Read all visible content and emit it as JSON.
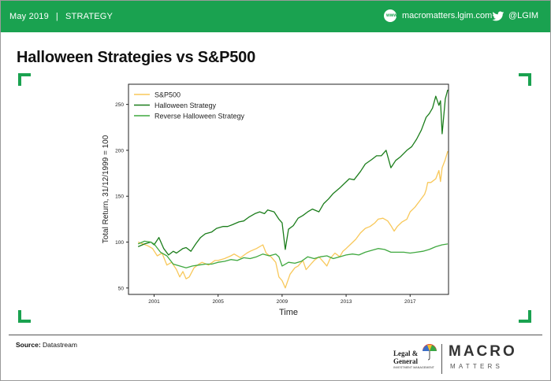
{
  "header": {
    "date": "May 2019",
    "separator": "|",
    "section": "STRATEGY",
    "website": "macromatters.lgim.com",
    "twitter": "@LGIM",
    "background_color": "#1aa250"
  },
  "slide_title": "Halloween Strategies vs S&P500",
  "source": {
    "label": "Source:",
    "text": "Datastream"
  },
  "footer": {
    "lg_name_line1": "Legal &",
    "lg_name_line2": "General",
    "lg_subtitle": "INVESTMENT MANAGEMENT",
    "brand_top": "MACRO",
    "brand_bottom": "MATTERS",
    "icons": [
      "umbrella-logo-icon",
      "macro-logo-icon",
      "web-icon",
      "twitter-icon"
    ]
  },
  "chart_data": {
    "type": "line",
    "title": "",
    "xlabel": "Time",
    "ylabel": "Total Return, 31/12/1999 = 100",
    "xlim": [
      1999.4,
      2019.4
    ],
    "ylim": [
      43,
      272
    ],
    "x_ticks": [
      2001,
      2005,
      2009,
      2013,
      2017
    ],
    "y_ticks": [
      50,
      100,
      150,
      200,
      250
    ],
    "grid": false,
    "legend_position": "top-left",
    "series": [
      {
        "name": "S&P500",
        "color": "#f8c85a",
        "x": [
          2000.0,
          2000.3,
          2000.6,
          2000.9,
          2001.2,
          2001.5,
          2001.8,
          2002.1,
          2002.4,
          2002.6,
          2002.8,
          2003.0,
          2003.2,
          2003.5,
          2003.8,
          2004.0,
          2004.4,
          2004.8,
          2005.0,
          2005.4,
          2005.8,
          2006.0,
          2006.4,
          2006.8,
          2007.0,
          2007.4,
          2007.8,
          2008.0,
          2008.3,
          2008.6,
          2008.8,
          2009.0,
          2009.2,
          2009.5,
          2009.8,
          2010.0,
          2010.3,
          2010.5,
          2010.8,
          2011.0,
          2011.3,
          2011.6,
          2011.8,
          2012.0,
          2012.3,
          2012.6,
          2012.8,
          2013.0,
          2013.3,
          2013.6,
          2013.9,
          2014.2,
          2014.5,
          2014.8,
          2015.0,
          2015.3,
          2015.6,
          2015.8,
          2016.0,
          2016.2,
          2016.5,
          2016.8,
          2017.0,
          2017.3,
          2017.6,
          2017.9,
          2018.0,
          2018.1,
          2018.3,
          2018.6,
          2018.8,
          2018.9,
          2019.0,
          2019.2,
          2019.35
        ],
        "values": [
          100,
          98,
          96,
          93,
          85,
          88,
          75,
          78,
          70,
          62,
          68,
          60,
          62,
          72,
          76,
          78,
          75,
          80,
          80,
          82,
          85,
          87,
          83,
          88,
          90,
          93,
          97,
          88,
          84,
          78,
          62,
          58,
          50,
          65,
          72,
          74,
          80,
          70,
          76,
          80,
          84,
          78,
          74,
          82,
          88,
          84,
          90,
          93,
          98,
          103,
          110,
          115,
          117,
          121,
          125,
          126,
          123,
          118,
          112,
          117,
          122,
          125,
          133,
          138,
          145,
          152,
          157,
          165,
          165,
          169,
          178,
          166,
          181,
          190,
          199
        ]
      },
      {
        "name": "Halloween Strategy",
        "color": "#1b7d1b",
        "x": [
          2000.0,
          2000.4,
          2000.8,
          2001.0,
          2001.3,
          2001.6,
          2001.9,
          2002.2,
          2002.4,
          2002.8,
          2003.0,
          2003.3,
          2003.6,
          2003.9,
          2004.2,
          2004.6,
          2004.9,
          2005.3,
          2005.6,
          2005.9,
          2006.3,
          2006.6,
          2006.9,
          2007.3,
          2007.6,
          2007.9,
          2008.1,
          2008.5,
          2008.8,
          2009.0,
          2009.2,
          2009.4,
          2009.7,
          2010.0,
          2010.3,
          2010.6,
          2010.9,
          2011.3,
          2011.6,
          2011.9,
          2012.2,
          2012.6,
          2012.9,
          2013.2,
          2013.5,
          2013.9,
          2014.2,
          2014.6,
          2014.9,
          2015.2,
          2015.5,
          2015.8,
          2016.1,
          2016.4,
          2016.8,
          2017.1,
          2017.4,
          2017.7,
          2018.0,
          2018.2,
          2018.4,
          2018.6,
          2018.8,
          2018.9,
          2019.0,
          2019.2,
          2019.35
        ],
        "values": [
          95,
          98,
          100,
          97,
          105,
          93,
          86,
          90,
          88,
          93,
          94,
          90,
          98,
          105,
          109,
          111,
          115,
          117,
          117,
          119,
          122,
          123,
          127,
          131,
          133,
          131,
          135,
          133,
          125,
          121,
          92,
          114,
          118,
          126,
          129,
          133,
          136,
          133,
          142,
          147,
          153,
          159,
          164,
          169,
          168,
          177,
          185,
          190,
          194,
          194,
          200,
          181,
          189,
          193,
          200,
          204,
          212,
          222,
          236,
          240,
          246,
          259,
          249,
          254,
          218,
          256,
          266
        ]
      },
      {
        "name": "Reverse Halloween Strategy",
        "color": "#3fa83f",
        "x": [
          2000.0,
          2000.4,
          2000.8,
          2001.0,
          2001.4,
          2001.8,
          2002.2,
          2002.6,
          2003.0,
          2003.4,
          2003.8,
          2004.2,
          2004.6,
          2005.0,
          2005.4,
          2005.8,
          2006.2,
          2006.6,
          2007.0,
          2007.4,
          2007.8,
          2008.2,
          2008.6,
          2008.8,
          2009.0,
          2009.4,
          2009.8,
          2010.2,
          2010.6,
          2011.0,
          2011.4,
          2011.8,
          2012.2,
          2012.6,
          2013.0,
          2013.4,
          2013.8,
          2014.2,
          2014.6,
          2015.0,
          2015.4,
          2015.8,
          2016.2,
          2016.6,
          2017.0,
          2017.4,
          2017.8,
          2018.2,
          2018.6,
          2019.0,
          2019.35
        ],
        "values": [
          98,
          101,
          100,
          98,
          89,
          85,
          76,
          74,
          72,
          74,
          75,
          76,
          76,
          78,
          79,
          81,
          80,
          83,
          82,
          84,
          87,
          85,
          87,
          84,
          74,
          78,
          77,
          79,
          84,
          82,
          84,
          85,
          82,
          84,
          86,
          87,
          86,
          89,
          91,
          93,
          92,
          89,
          89,
          89,
          88,
          89,
          90,
          92,
          95,
          97,
          98
        ]
      }
    ]
  }
}
